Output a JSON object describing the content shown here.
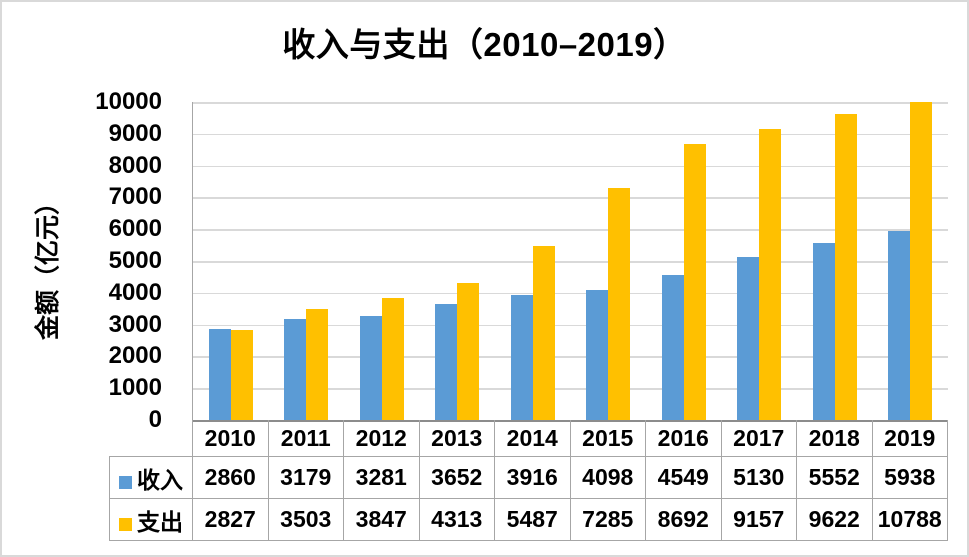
{
  "window": {
    "background": "#ffffff",
    "frame_border_color": "#d9d9d9"
  },
  "chart_data": {
    "type": "bar",
    "title": "收入与支出（2010–2019）",
    "ylabel": "金额（亿元）",
    "categories": [
      "2010",
      "2011",
      "2012",
      "2013",
      "2014",
      "2015",
      "2016",
      "2017",
      "2018",
      "2019"
    ],
    "series": [
      {
        "name": "收入",
        "color": "#5B9BD5",
        "values": [
          2860,
          3179,
          3281,
          3652,
          3916,
          4098,
          4549,
          5130,
          5552,
          5938
        ]
      },
      {
        "name": "支出",
        "color": "#FFC000",
        "values": [
          2827,
          3503,
          3847,
          4313,
          5487,
          7285,
          8692,
          9157,
          9622,
          10788
        ]
      }
    ],
    "ylim": [
      0,
      10000
    ],
    "ytick_step": 1000,
    "yticks": [
      10000,
      9000,
      8000,
      7000,
      6000,
      5000,
      4000,
      3000,
      2000,
      1000,
      0
    ],
    "grid": true,
    "bars_clipped_at_ymax": true,
    "legend_position": "table-left",
    "data_table_shown": true,
    "colors": {
      "gridline": "#d9d9d9",
      "axis_line": "#8c8c8c",
      "table_border": "#a6a6a6",
      "text": "#000000"
    }
  }
}
